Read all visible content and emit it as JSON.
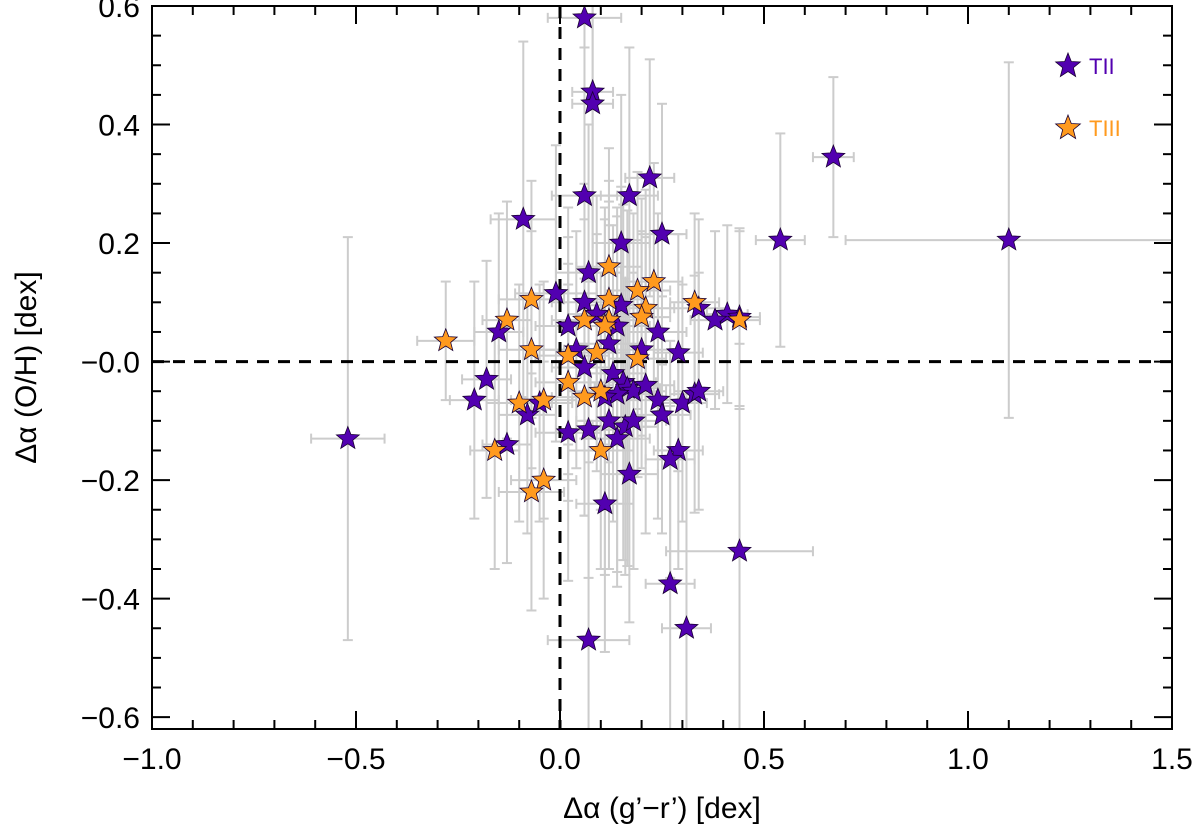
{
  "chart_data": {
    "type": "scatter",
    "title": "",
    "xlabel": "Δα (g’−r’) [dex]",
    "ylabel": "Δα (O/H) [dex]",
    "xlim": [
      -1.0,
      1.5
    ],
    "ylim": [
      -0.62,
      0.6
    ],
    "xticks": [
      -1.0,
      -0.5,
      0.0,
      0.5,
      1.0,
      1.5
    ],
    "xtick_labels": [
      "−1.0",
      "−0.5",
      "0.0",
      "0.5",
      "1.0",
      "1.5"
    ],
    "yticks": [
      0.6,
      0.4,
      0.2,
      0.0,
      -0.2,
      -0.4,
      -0.6
    ],
    "ytick_labels": [
      "0.6",
      "0.4",
      "0.2",
      "−0.0",
      "−0.2",
      "−0.4",
      "−0.6"
    ],
    "reference_lines": {
      "x": 0.0,
      "y": 0.0,
      "style": "dashed"
    },
    "legend_position": "top-right",
    "error_bar_color": "#cccccc",
    "series": [
      {
        "name": "TII",
        "color": "#5200b0",
        "points": [
          {
            "x": 0.06,
            "y": 0.58,
            "xerr": 0.09,
            "yerr": 0.3
          },
          {
            "x": 0.08,
            "y": 0.455,
            "xerr": 0.05,
            "yerr": 0.3
          },
          {
            "x": 0.08,
            "y": 0.435,
            "xerr": 0.05,
            "yerr": 0.3
          },
          {
            "x": 0.67,
            "y": 0.345,
            "xerr": 0.05,
            "yerr": 0.135
          },
          {
            "x": 0.22,
            "y": 0.31,
            "xerr": 0.06,
            "yerr": 0.2
          },
          {
            "x": 0.06,
            "y": 0.28,
            "xerr": 0.08,
            "yerr": 0.25
          },
          {
            "x": 0.17,
            "y": 0.28,
            "xerr": 0.07,
            "yerr": 0.25
          },
          {
            "x": -0.09,
            "y": 0.24,
            "xerr": 0.08,
            "yerr": 0.3
          },
          {
            "x": 0.25,
            "y": 0.215,
            "xerr": 0.06,
            "yerr": 0.22
          },
          {
            "x": 0.54,
            "y": 0.205,
            "xerr": 0.06,
            "yerr": 0.18
          },
          {
            "x": 1.1,
            "y": 0.205,
            "xerr": 0.4,
            "yerr": 0.3
          },
          {
            "x": 0.15,
            "y": 0.2,
            "xerr": 0.07,
            "yerr": 0.25
          },
          {
            "x": 0.07,
            "y": 0.15,
            "xerr": 0.08,
            "yerr": 0.25
          },
          {
            "x": -0.01,
            "y": 0.115,
            "xerr": 0.1,
            "yerr": 0.25
          },
          {
            "x": 0.06,
            "y": 0.1,
            "xerr": 0.08,
            "yerr": 0.2
          },
          {
            "x": 0.15,
            "y": 0.095,
            "xerr": 0.09,
            "yerr": 0.2
          },
          {
            "x": 0.09,
            "y": 0.08,
            "xerr": 0.07,
            "yerr": 0.2
          },
          {
            "x": 0.34,
            "y": 0.09,
            "xerr": 0.07,
            "yerr": 0.15
          },
          {
            "x": 0.41,
            "y": 0.08,
            "xerr": 0.05,
            "yerr": 0.15
          },
          {
            "x": 0.44,
            "y": 0.075,
            "xerr": 0.05,
            "yerr": 0.15
          },
          {
            "x": 0.38,
            "y": 0.07,
            "xerr": 0.06,
            "yerr": 0.15
          },
          {
            "x": 0.02,
            "y": 0.06,
            "xerr": 0.08,
            "yerr": 0.2
          },
          {
            "x": 0.14,
            "y": 0.06,
            "xerr": 0.08,
            "yerr": 0.2
          },
          {
            "x": 0.24,
            "y": 0.05,
            "xerr": 0.07,
            "yerr": 0.2
          },
          {
            "x": 0.12,
            "y": 0.03,
            "xerr": 0.08,
            "yerr": 0.2
          },
          {
            "x": -0.15,
            "y": 0.05,
            "xerr": 0.06,
            "yerr": 0.2
          },
          {
            "x": 0.04,
            "y": 0.02,
            "xerr": 0.08,
            "yerr": 0.2
          },
          {
            "x": 0.2,
            "y": 0.02,
            "xerr": 0.07,
            "yerr": 0.2
          },
          {
            "x": 0.29,
            "y": 0.015,
            "xerr": 0.06,
            "yerr": 0.2
          },
          {
            "x": 0.06,
            "y": -0.01,
            "xerr": 0.08,
            "yerr": 0.25
          },
          {
            "x": 0.13,
            "y": -0.02,
            "xerr": 0.08,
            "yerr": 0.25
          },
          {
            "x": 0.155,
            "y": -0.035,
            "xerr": 0.08,
            "yerr": 0.3
          },
          {
            "x": 0.165,
            "y": -0.045,
            "xerr": 0.08,
            "yerr": 0.3
          },
          {
            "x": 0.18,
            "y": -0.05,
            "xerr": 0.08,
            "yerr": 0.3
          },
          {
            "x": 0.14,
            "y": -0.055,
            "xerr": 0.08,
            "yerr": 0.3
          },
          {
            "x": 0.11,
            "y": -0.06,
            "xerr": 0.08,
            "yerr": 0.3
          },
          {
            "x": 0.21,
            "y": -0.04,
            "xerr": 0.07,
            "yerr": 0.25
          },
          {
            "x": -0.18,
            "y": -0.03,
            "xerr": 0.06,
            "yerr": 0.2
          },
          {
            "x": -0.21,
            "y": -0.065,
            "xerr": 0.06,
            "yerr": 0.2
          },
          {
            "x": 0.24,
            "y": -0.065,
            "xerr": 0.07,
            "yerr": 0.2
          },
          {
            "x": 0.3,
            "y": -0.07,
            "xerr": 0.06,
            "yerr": 0.2
          },
          {
            "x": 0.33,
            "y": -0.055,
            "xerr": 0.06,
            "yerr": 0.2
          },
          {
            "x": 0.34,
            "y": -0.05,
            "xerr": 0.06,
            "yerr": 0.2
          },
          {
            "x": -0.08,
            "y": -0.09,
            "xerr": 0.07,
            "yerr": 0.2
          },
          {
            "x": 0.25,
            "y": -0.09,
            "xerr": 0.07,
            "yerr": 0.2
          },
          {
            "x": -0.05,
            "y": -0.07,
            "xerr": 0.08,
            "yerr": 0.2
          },
          {
            "x": 0.12,
            "y": -0.1,
            "xerr": 0.08,
            "yerr": 0.25
          },
          {
            "x": 0.16,
            "y": -0.11,
            "xerr": 0.08,
            "yerr": 0.25
          },
          {
            "x": 0.18,
            "y": -0.1,
            "xerr": 0.08,
            "yerr": 0.25
          },
          {
            "x": 0.14,
            "y": -0.13,
            "xerr": 0.08,
            "yerr": 0.25
          },
          {
            "x": 0.07,
            "y": -0.115,
            "xerr": 0.08,
            "yerr": 0.25
          },
          {
            "x": 0.02,
            "y": -0.12,
            "xerr": 0.08,
            "yerr": 0.25
          },
          {
            "x": -0.13,
            "y": -0.14,
            "xerr": 0.06,
            "yerr": 0.2
          },
          {
            "x": 0.29,
            "y": -0.15,
            "xerr": 0.06,
            "yerr": 0.2
          },
          {
            "x": 0.27,
            "y": -0.165,
            "xerr": 0.06,
            "yerr": 0.2
          },
          {
            "x": 0.17,
            "y": -0.19,
            "xerr": 0.07,
            "yerr": 0.25
          },
          {
            "x": 0.11,
            "y": -0.24,
            "xerr": 0.07,
            "yerr": 0.25
          },
          {
            "x": -0.52,
            "y": -0.13,
            "xerr": 0.09,
            "yerr": 0.34
          },
          {
            "x": 0.44,
            "y": -0.32,
            "xerr": 0.18,
            "yerr": 0.35
          },
          {
            "x": 0.27,
            "y": -0.375,
            "xerr": 0.06,
            "yerr": 0.3
          },
          {
            "x": 0.31,
            "y": -0.45,
            "xerr": 0.06,
            "yerr": 0.3
          },
          {
            "x": 0.07,
            "y": -0.47,
            "xerr": 0.1,
            "yerr": 0.3
          }
        ]
      },
      {
        "name": "TIII",
        "color": "#ff9a1e",
        "points": [
          {
            "x": 0.12,
            "y": 0.16,
            "xerr": 0.08,
            "yerr": 0.2
          },
          {
            "x": 0.23,
            "y": 0.135,
            "xerr": 0.07,
            "yerr": 0.2
          },
          {
            "x": 0.19,
            "y": 0.12,
            "xerr": 0.08,
            "yerr": 0.2
          },
          {
            "x": 0.12,
            "y": 0.105,
            "xerr": 0.08,
            "yerr": 0.2
          },
          {
            "x": -0.07,
            "y": 0.105,
            "xerr": 0.08,
            "yerr": 0.2
          },
          {
            "x": 0.33,
            "y": 0.1,
            "xerr": 0.06,
            "yerr": 0.15
          },
          {
            "x": 0.21,
            "y": 0.09,
            "xerr": 0.07,
            "yerr": 0.2
          },
          {
            "x": 0.2,
            "y": 0.075,
            "xerr": 0.07,
            "yerr": 0.2
          },
          {
            "x": 0.44,
            "y": 0.07,
            "xerr": 0.05,
            "yerr": 0.15
          },
          {
            "x": -0.13,
            "y": 0.07,
            "xerr": 0.06,
            "yerr": 0.2
          },
          {
            "x": 0.06,
            "y": 0.07,
            "xerr": 0.08,
            "yerr": 0.2
          },
          {
            "x": 0.12,
            "y": 0.07,
            "xerr": 0.08,
            "yerr": 0.2
          },
          {
            "x": 0.11,
            "y": 0.06,
            "xerr": 0.08,
            "yerr": 0.2
          },
          {
            "x": -0.28,
            "y": 0.035,
            "xerr": 0.07,
            "yerr": 0.1
          },
          {
            "x": -0.07,
            "y": 0.02,
            "xerr": 0.08,
            "yerr": 0.2
          },
          {
            "x": 0.02,
            "y": 0.01,
            "xerr": 0.08,
            "yerr": 0.2
          },
          {
            "x": 0.09,
            "y": 0.015,
            "xerr": 0.08,
            "yerr": 0.2
          },
          {
            "x": 0.19,
            "y": 0.005,
            "xerr": 0.07,
            "yerr": 0.2
          },
          {
            "x": 0.02,
            "y": -0.035,
            "xerr": 0.08,
            "yerr": 0.2
          },
          {
            "x": 0.1,
            "y": -0.05,
            "xerr": 0.08,
            "yerr": 0.2
          },
          {
            "x": -0.04,
            "y": -0.065,
            "xerr": 0.08,
            "yerr": 0.2
          },
          {
            "x": 0.06,
            "y": -0.06,
            "xerr": 0.08,
            "yerr": 0.2
          },
          {
            "x": -0.1,
            "y": -0.07,
            "xerr": 0.08,
            "yerr": 0.2
          },
          {
            "x": -0.16,
            "y": -0.15,
            "xerr": 0.06,
            "yerr": 0.2
          },
          {
            "x": 0.1,
            "y": -0.15,
            "xerr": 0.08,
            "yerr": 0.2
          },
          {
            "x": -0.04,
            "y": -0.2,
            "xerr": 0.08,
            "yerr": 0.2
          },
          {
            "x": -0.07,
            "y": -0.22,
            "xerr": 0.08,
            "yerr": 0.2
          }
        ]
      }
    ]
  }
}
